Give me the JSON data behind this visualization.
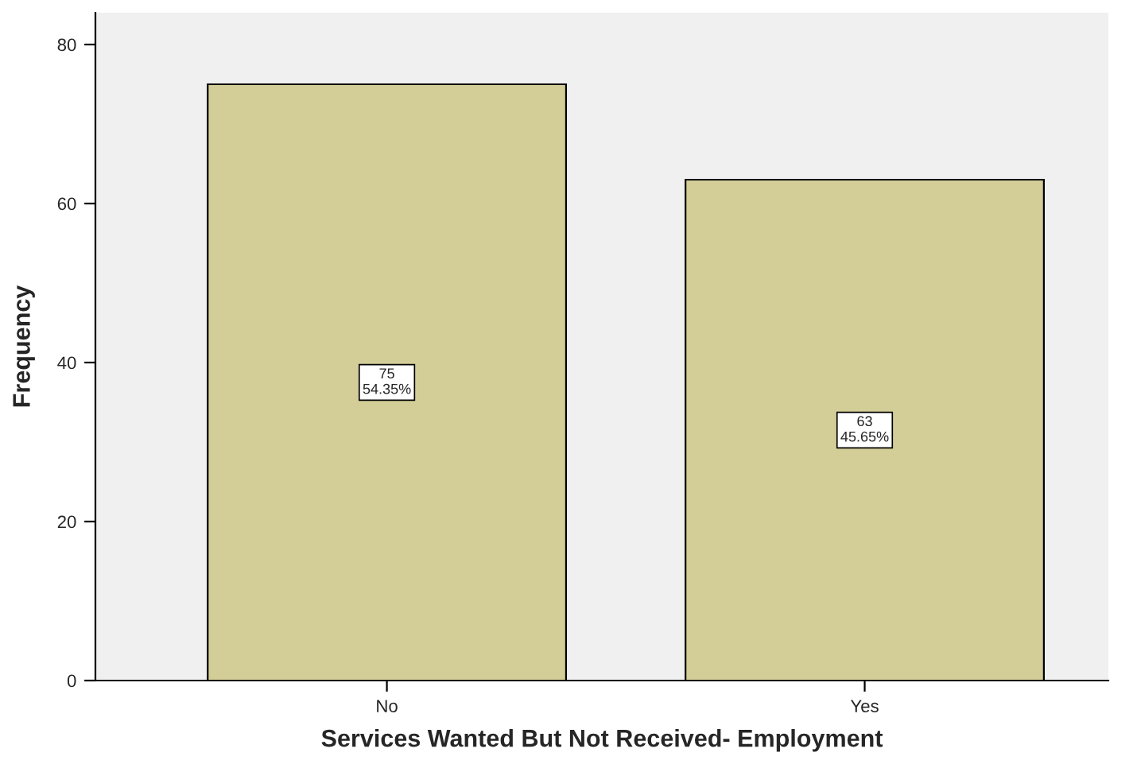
{
  "chart_data": {
    "type": "bar",
    "xlabel": "Services Wanted But Not Received- Employment",
    "ylabel": "Frequency",
    "categories": [
      "No",
      "Yes"
    ],
    "values": [
      75,
      63
    ],
    "value_labels": [
      "75\n54.35%",
      "63\n45.65%"
    ],
    "color": "#d3ce97",
    "ylim": [
      0,
      84
    ],
    "yticks": [
      0,
      20,
      40,
      60,
      80
    ],
    "grid": false,
    "legend": false
  }
}
